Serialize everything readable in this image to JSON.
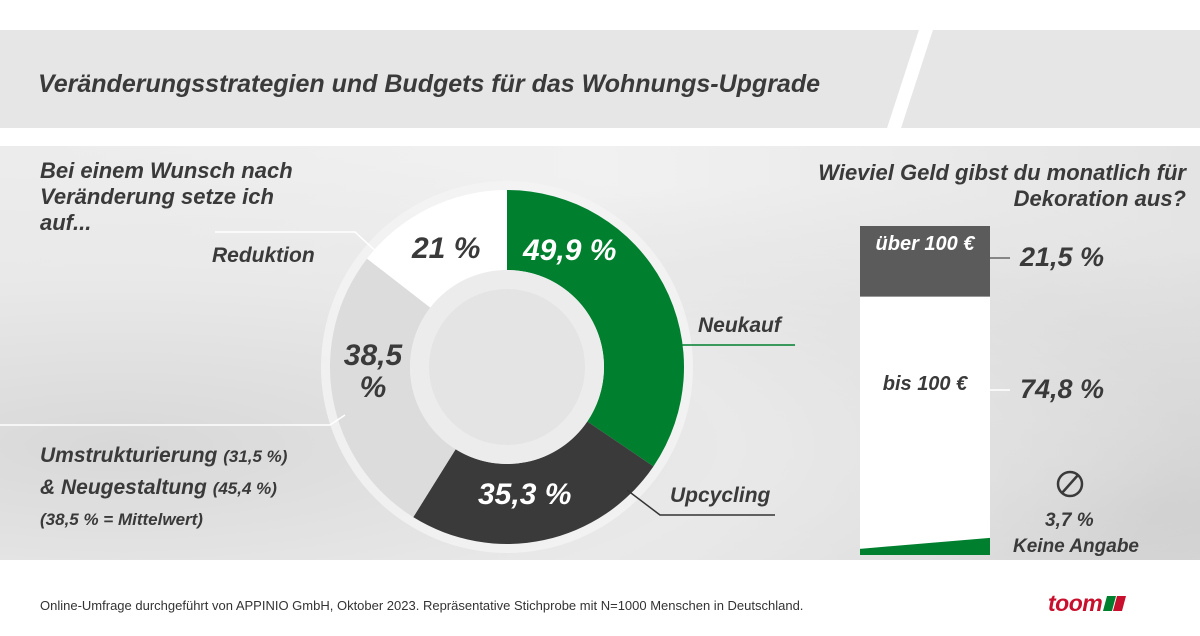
{
  "header": {
    "title": "Veränderungsstrategien und Budgets für das Wohnungs-Upgrade"
  },
  "left": {
    "question": [
      "Bei einem Wunsch nach",
      "Veränderung setze ich",
      "auf..."
    ],
    "note_line1": "Umstrukturierung",
    "note_line1_val": "(31,5 %)",
    "note_line2": "& Neugestaltung",
    "note_line2_val": "(45,4 %)",
    "note_line3": "(38,5 % = Mittelwert)"
  },
  "right": {
    "question": [
      "Wieviel Geld gibst du monatlich für",
      "Dekoration aus?"
    ],
    "no_answer_icon": "prohibited-icon"
  },
  "footer": {
    "source": "Online-Umfrage durchgeführt von APPINIO GmbH, Oktober 2023. Repräsentative Stichprobe mit N=1000 Menschen in Deutschland.",
    "logo": "toom"
  },
  "chart_data": [
    {
      "type": "pie",
      "donut": true,
      "series": [
        {
          "name": "Neukauf",
          "value": 49.9,
          "label": "49,9 %",
          "color": "#00802f"
        },
        {
          "name": "Upcycling",
          "value": 35.3,
          "label": "35,3 %",
          "color": "#3a3a3a"
        },
        {
          "name": "",
          "value": 38.5,
          "label": "38,5 %",
          "color": "#dcdcdc"
        },
        {
          "name": "Reduktion",
          "value": 21,
          "label": "21 %",
          "color": "#ffffff"
        }
      ]
    },
    {
      "type": "bar",
      "stacked": true,
      "segments": [
        {
          "name": "über 100 €",
          "value": 21.5,
          "label": "21,5 %",
          "color": "#5b5b5b"
        },
        {
          "name": "bis 100 €",
          "value": 74.8,
          "label": "74,8 %",
          "color": "#ffffff"
        },
        {
          "name": "Keine Angabe",
          "value": 3.7,
          "label": "3,7 %",
          "color": "#00802f"
        }
      ]
    }
  ]
}
